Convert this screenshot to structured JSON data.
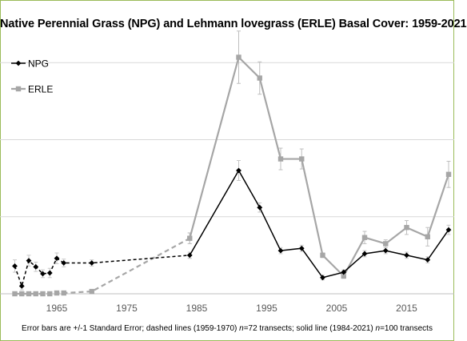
{
  "chart_data": {
    "type": "line",
    "title": "Native Perennial Grass (NPG) and Lehmann lovegrass (ERLE) Basal Cover: 1959-2021",
    "x_ticks": [
      "1965",
      "1975",
      "1985",
      "1995",
      "2005",
      "2015"
    ],
    "xlim": [
      1958.5,
      2021.5
    ],
    "ylim": [
      0,
      3.2
    ],
    "y_gridlines": [
      0,
      1,
      2,
      3
    ],
    "legend_placement": "top-left",
    "series": [
      {
        "name": "NPG",
        "color": "#000000",
        "marker": "diamond",
        "dashed_points": [
          {
            "x": 1959,
            "y": 0.36,
            "err": 0.08
          },
          {
            "x": 1960,
            "y": 0.1,
            "err": 0.05
          },
          {
            "x": 1961,
            "y": 0.43,
            "err": 0.07
          },
          {
            "x": 1962,
            "y": 0.35,
            "err": 0.06
          },
          {
            "x": 1963,
            "y": 0.26,
            "err": 0.05
          },
          {
            "x": 1964,
            "y": 0.27,
            "err": 0.06
          },
          {
            "x": 1965,
            "y": 0.46,
            "err": 0.07
          },
          {
            "x": 1966,
            "y": 0.4,
            "err": 0.05
          },
          {
            "x": 1970,
            "y": 0.4,
            "err": 0.04
          },
          {
            "x": 1984,
            "y": 0.5,
            "err": 0.04
          }
        ],
        "solid_points": [
          {
            "x": 1984,
            "y": 0.5,
            "err": 0.04
          },
          {
            "x": 1991,
            "y": 1.6,
            "err": 0.13
          },
          {
            "x": 1994,
            "y": 1.12,
            "err": 0.06
          },
          {
            "x": 1997,
            "y": 0.56,
            "err": 0.04
          },
          {
            "x": 2000,
            "y": 0.59,
            "err": 0.04
          },
          {
            "x": 2003,
            "y": 0.21,
            "err": 0.03
          },
          {
            "x": 2006,
            "y": 0.28,
            "err": 0.03
          },
          {
            "x": 2009,
            "y": 0.52,
            "err": 0.04
          },
          {
            "x": 2012,
            "y": 0.56,
            "err": 0.04
          },
          {
            "x": 2015,
            "y": 0.5,
            "err": 0.04
          },
          {
            "x": 2018,
            "y": 0.44,
            "err": 0.04
          },
          {
            "x": 2021,
            "y": 0.83,
            "err": 0.06
          }
        ]
      },
      {
        "name": "ERLE",
        "color": "#a6a6a6",
        "marker": "square",
        "dashed_points": [
          {
            "x": 1959,
            "y": 0.0,
            "err": 0.0
          },
          {
            "x": 1960,
            "y": 0.0,
            "err": 0.0
          },
          {
            "x": 1961,
            "y": 0.0,
            "err": 0.0
          },
          {
            "x": 1962,
            "y": 0.0,
            "err": 0.0
          },
          {
            "x": 1963,
            "y": 0.0,
            "err": 0.0
          },
          {
            "x": 1964,
            "y": 0.0,
            "err": 0.0
          },
          {
            "x": 1965,
            "y": 0.01,
            "err": 0.0
          },
          {
            "x": 1966,
            "y": 0.01,
            "err": 0.0
          },
          {
            "x": 1970,
            "y": 0.03,
            "err": 0.01
          },
          {
            "x": 1984,
            "y": 0.72,
            "err": 0.07
          }
        ],
        "solid_points": [
          {
            "x": 1984,
            "y": 0.72,
            "err": 0.07
          },
          {
            "x": 1991,
            "y": 3.07,
            "err": 0.34
          },
          {
            "x": 1994,
            "y": 2.8,
            "err": 0.21
          },
          {
            "x": 1997,
            "y": 1.75,
            "err": 0.14
          },
          {
            "x": 2000,
            "y": 1.75,
            "err": 0.13
          },
          {
            "x": 2003,
            "y": 0.5,
            "err": 0.03
          },
          {
            "x": 2006,
            "y": 0.23,
            "err": 0.03
          },
          {
            "x": 2009,
            "y": 0.73,
            "err": 0.08
          },
          {
            "x": 2012,
            "y": 0.65,
            "err": 0.05
          },
          {
            "x": 2015,
            "y": 0.86,
            "err": 0.09
          },
          {
            "x": 2018,
            "y": 0.74,
            "err": 0.12
          },
          {
            "x": 2021,
            "y": 1.55,
            "err": 0.17
          }
        ]
      }
    ],
    "footnote": {
      "part1": "Error bars are +/-1 Standard Error; dashed lines (1959-1970) ",
      "n1": "n",
      "part2": "=72 transects; solid line (1984-2021) ",
      "n2": "n",
      "part3": "=100 transects"
    }
  }
}
